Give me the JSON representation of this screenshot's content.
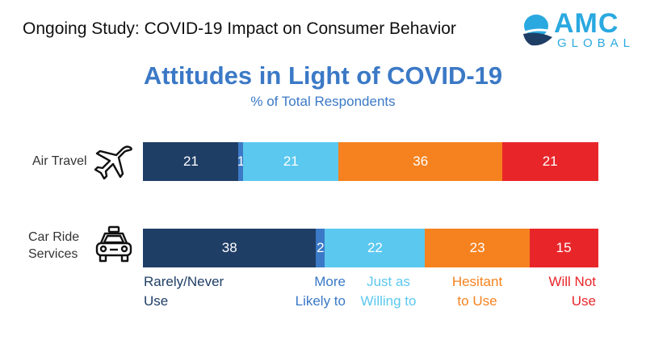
{
  "header": {
    "study_title": "Ongoing Study: COVID-19 Impact on Consumer Behavior",
    "logo_text": "AMC",
    "logo_subtext": "GLOBAL"
  },
  "colors": {
    "rarely_never_use": "#1f3e66",
    "more_likely_to": "#3b79c6",
    "just_as_willing_to": "#5bc8ef",
    "hesitant_to_use": "#f5821f",
    "will_not_use": "#e8262a",
    "title_blue": "#3b79c6",
    "logo_blue": "#2aa9e0"
  },
  "chart_data": {
    "type": "bar",
    "orientation": "horizontal",
    "stacked": true,
    "title": "Attitudes in Light of COVID-19",
    "subtitle": "% of Total Respondents",
    "categories": [
      "Air Travel",
      "Car Ride Services"
    ],
    "category_lines": [
      [
        "Air Travel"
      ],
      [
        "Car Ride",
        "Services"
      ]
    ],
    "category_icons": [
      "airplane-icon",
      "car-icon"
    ],
    "series": [
      {
        "name": "Rarely/Never Use",
        "legend_lines": [
          "Rarely/Never",
          "Use"
        ],
        "values": [
          21,
          38
        ],
        "labels": [
          "21",
          "38"
        ]
      },
      {
        "name": "More Likely to",
        "legend_lines": [
          "More",
          "Likely to"
        ],
        "values": [
          1,
          2
        ],
        "labels": [
          "1",
          "2"
        ]
      },
      {
        "name": "Just as Willing to",
        "legend_lines": [
          "Just as",
          "Willing to"
        ],
        "values": [
          21,
          22
        ],
        "labels": [
          "21",
          "22"
        ]
      },
      {
        "name": "Hesitant to Use",
        "legend_lines": [
          "Hesitant",
          "to Use"
        ],
        "values": [
          36,
          23
        ],
        "labels": [
          "36",
          "23"
        ]
      },
      {
        "name": "Will Not Use",
        "legend_lines": [
          "Will Not",
          "Use"
        ],
        "values": [
          21,
          15
        ],
        "labels": [
          "21",
          "15"
        ]
      }
    ],
    "xlim": [
      0,
      100
    ],
    "grid": false,
    "legend_placement": "bottom"
  }
}
